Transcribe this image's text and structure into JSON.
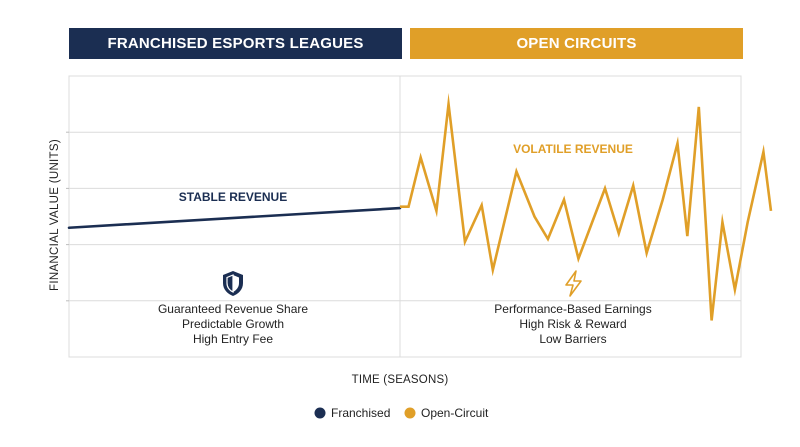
{
  "banners": {
    "left": "FRANCHISED ESPORTS LEAGUES",
    "right": "OPEN CIRCUITS"
  },
  "colors": {
    "franchised": "#1b2e52",
    "open_circuit": "#e09f28",
    "grid": "#dcdcdc",
    "text": "#222222"
  },
  "chart_data": {
    "type": "line",
    "xlabel": "TIME (SEASONS)",
    "ylabel": "FINANCIAL VALUE (UNITS)",
    "ylim": [
      0,
      100
    ],
    "grid": true,
    "legend_position": "bottom-center",
    "annotations": {
      "franchised_label": "STABLE REVENUE",
      "open_label": "VOLATILE REVENUE",
      "franchised_icon": "shield-icon",
      "open_icon": "lightning-icon",
      "franchised_features": [
        "Guaranteed Revenue Share",
        "Predictable Growth",
        "High Entry Fee"
      ],
      "open_features": [
        "Performance-Based Earnings",
        "High Risk & Reward",
        "Low Barriers"
      ]
    },
    "legend": [
      "Franchised",
      "Open-Circuit"
    ],
    "series": [
      {
        "name": "Franchised",
        "color": "#1b2e52",
        "points": [
          [
            0,
            46
          ],
          [
            1,
            53
          ]
        ]
      },
      {
        "name": "Open-Circuit",
        "color": "#e09f28",
        "points": [
          [
            0.0,
            53.5
          ],
          [
            0.026,
            53.5
          ],
          [
            0.063,
            71
          ],
          [
            0.111,
            52
          ],
          [
            0.148,
            90
          ],
          [
            0.198,
            41
          ],
          [
            0.249,
            54
          ],
          [
            0.283,
            31
          ],
          [
            0.355,
            66
          ],
          [
            0.41,
            50
          ],
          [
            0.451,
            42
          ],
          [
            0.5,
            56
          ],
          [
            0.544,
            35
          ],
          [
            0.586,
            48
          ],
          [
            0.625,
            60
          ],
          [
            0.667,
            44
          ],
          [
            0.711,
            61
          ],
          [
            0.752,
            37
          ],
          [
            0.801,
            56
          ],
          [
            0.846,
            76
          ],
          [
            0.876,
            43
          ],
          [
            0.911,
            89
          ],
          [
            0.95,
            13
          ],
          [
            0.983,
            48
          ],
          [
            1.021,
            24
          ],
          [
            1.06,
            48
          ],
          [
            1.108,
            73
          ],
          [
            1.131,
            52
          ]
        ]
      }
    ]
  }
}
